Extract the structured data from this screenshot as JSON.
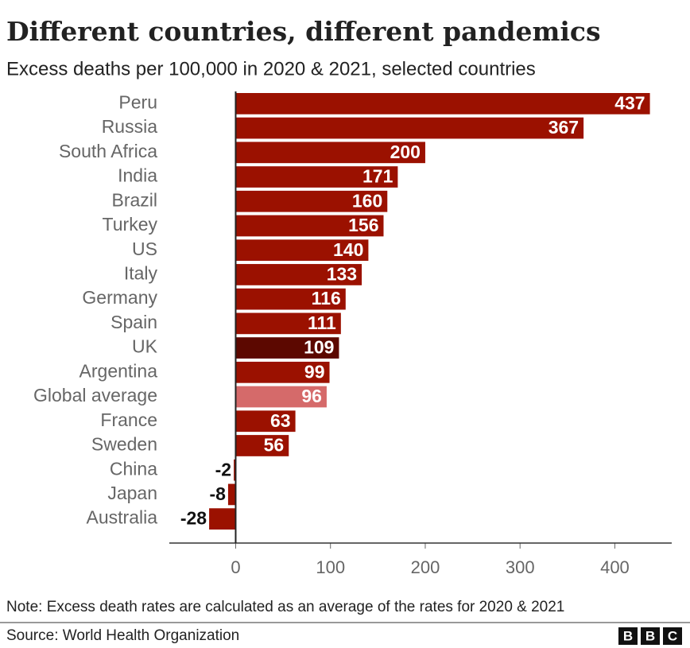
{
  "chart_data": {
    "type": "bar",
    "orientation": "horizontal",
    "title": "Different countries, different pandemics",
    "subtitle": "Excess deaths per 100,000 in 2020 & 2021, selected countries",
    "categories": [
      "Peru",
      "Russia",
      "South Africa",
      "India",
      "Brazil",
      "Turkey",
      "US",
      "Italy",
      "Germany",
      "Spain",
      "UK",
      "Argentina",
      "Global average",
      "France",
      "Sweden",
      "China",
      "Japan",
      "Australia"
    ],
    "values": [
      437,
      367,
      200,
      171,
      160,
      156,
      140,
      133,
      116,
      111,
      109,
      99,
      96,
      63,
      56,
      -2,
      -8,
      -28
    ],
    "colors": [
      "#9b1100",
      "#9b1100",
      "#9b1100",
      "#9b1100",
      "#9b1100",
      "#9b1100",
      "#9b1100",
      "#9b1100",
      "#9b1100",
      "#9b1100",
      "#5c0800",
      "#9b1100",
      "#d56a6a",
      "#9b1100",
      "#9b1100",
      "#9b1100",
      "#9b1100",
      "#9b1100"
    ],
    "xlim": [
      -70,
      460
    ],
    "xticks": [
      0,
      100,
      200,
      300,
      400
    ],
    "note": "Note: Excess death rates are calculated as an average of the rates for 2020 & 2021",
    "source": "Source: World Health Organization",
    "logo": [
      "B",
      "B",
      "C"
    ]
  }
}
